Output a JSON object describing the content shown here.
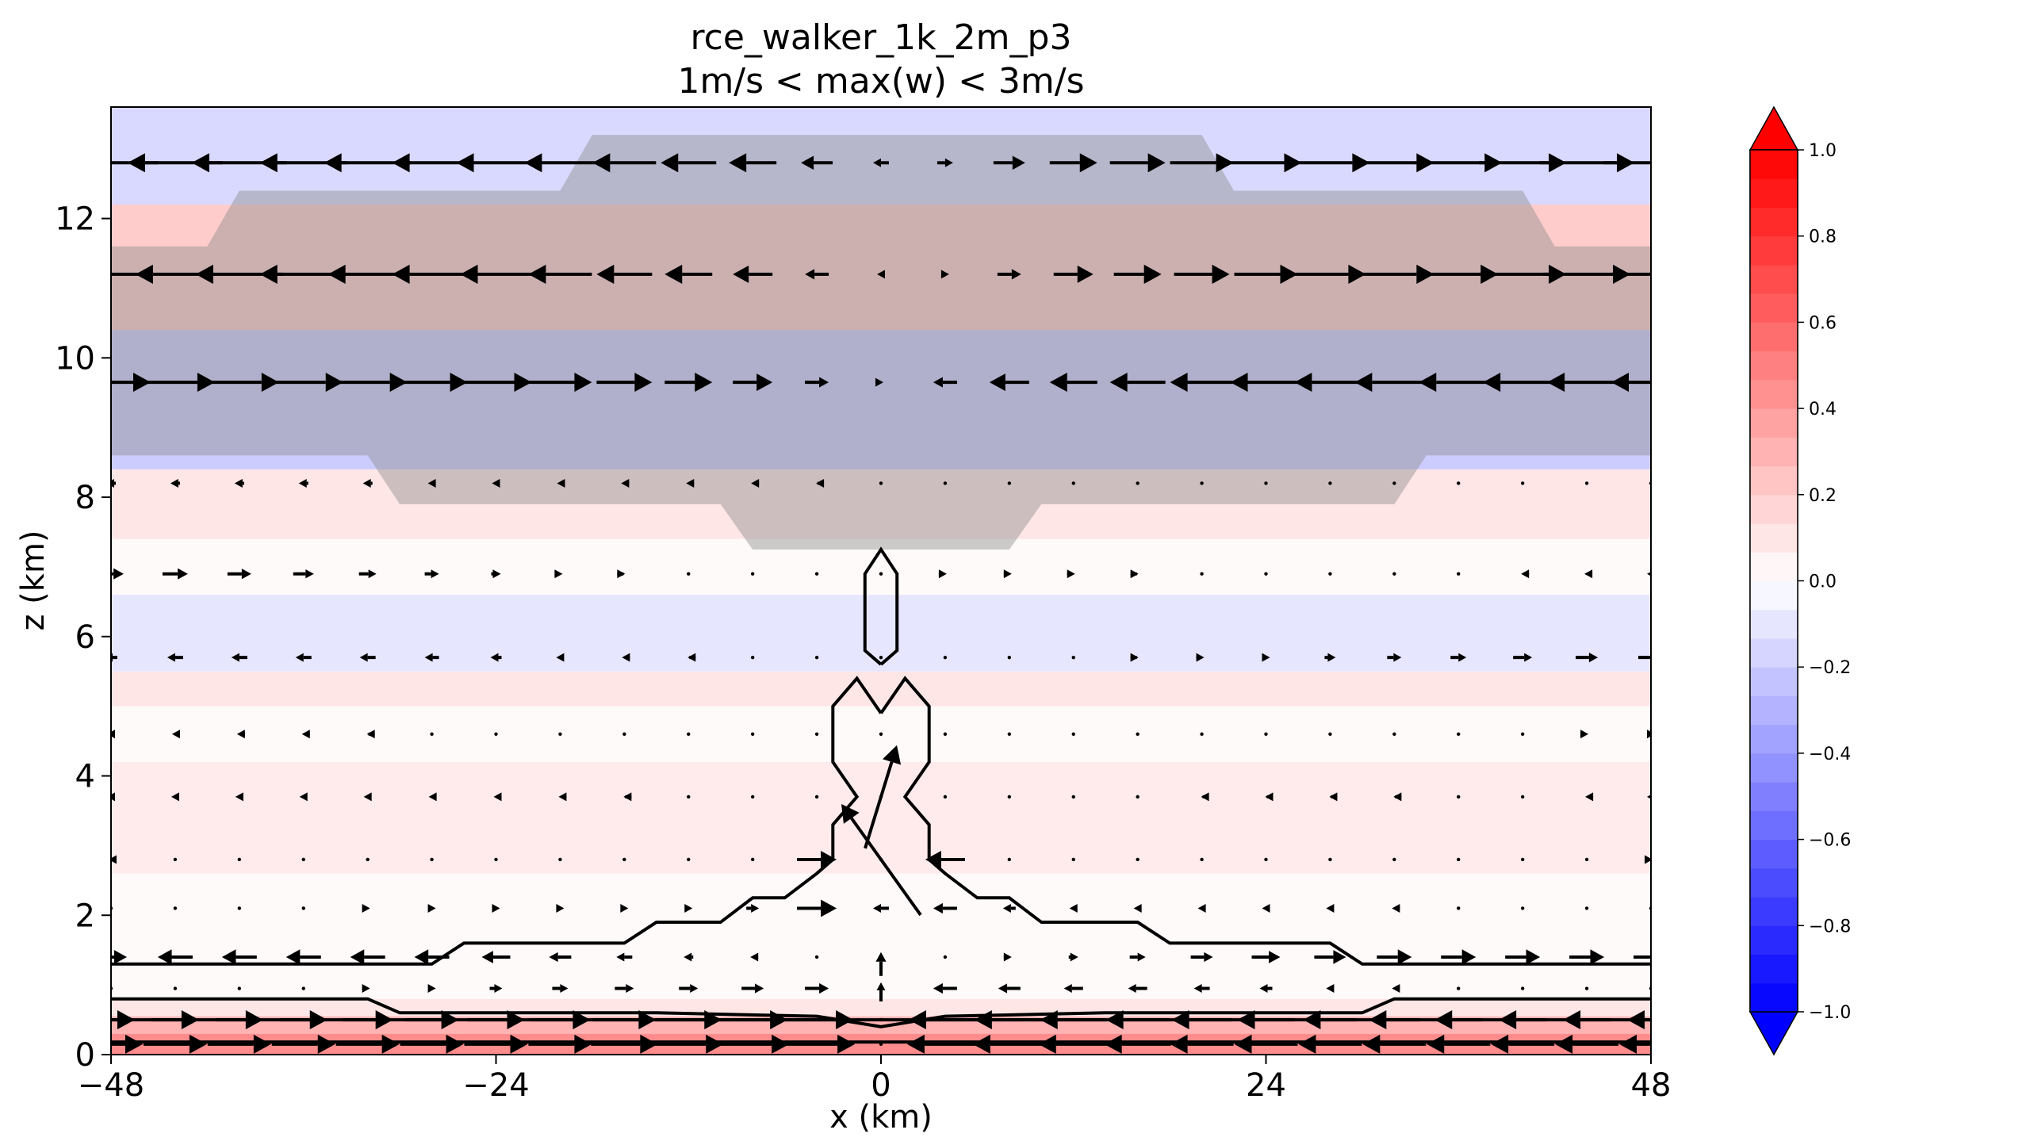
{
  "chart_data": {
    "type": "heatmap",
    "title": "rce_walker_1k_2m_p3",
    "subtitle": "1m/s < max(w) < 3m/s",
    "xlabel": "x (km)",
    "ylabel": "z (km)",
    "xlim": [
      -48,
      48
    ],
    "ylim": [
      0,
      13.6
    ],
    "xticks": [
      -48,
      -24,
      0,
      24,
      48
    ],
    "yticks": [
      0,
      2,
      4,
      6,
      8,
      10,
      12
    ],
    "colorbar": {
      "colormap": "bwr",
      "range": [
        -1.0,
        1.0
      ],
      "ticks": [
        "1.0",
        "0.8",
        "0.6",
        "0.4",
        "0.2",
        "0.0",
        "−0.2",
        "−0.4",
        "−0.6",
        "−0.8",
        "−1.0"
      ],
      "extend": "both",
      "low_color": "#0000ff",
      "mid_color": "#ffffff",
      "high_color": "#ff0000"
    },
    "field_bands": [
      {
        "z": [
          0.0,
          0.3
        ],
        "value": 0.45
      },
      {
        "z": [
          0.3,
          0.55
        ],
        "value": 0.3
      },
      {
        "z": [
          0.55,
          0.8
        ],
        "value": 0.1
      },
      {
        "z": [
          0.8,
          1.4
        ],
        "value": 0.02
      },
      {
        "z": [
          1.4,
          2.6
        ],
        "value": 0.02
      },
      {
        "z": [
          2.6,
          4.2
        ],
        "value": 0.08
      },
      {
        "z": [
          4.2,
          5.0
        ],
        "value": 0.02
      },
      {
        "z": [
          5.0,
          5.5
        ],
        "value": 0.1
      },
      {
        "z": [
          5.5,
          6.6
        ],
        "value": -0.1
      },
      {
        "z": [
          6.6,
          7.4
        ],
        "value": 0.02
      },
      {
        "z": [
          7.4,
          8.4
        ],
        "value": 0.1
      },
      {
        "z": [
          8.4,
          10.4
        ],
        "value": -0.2
      },
      {
        "z": [
          10.4,
          12.2
        ],
        "value": 0.2
      },
      {
        "z": [
          12.2,
          13.6
        ],
        "value": -0.15
      }
    ],
    "grey_region_outline_xz": [
      [
        -48,
        8.6
      ],
      [
        -48,
        11.6
      ],
      [
        -42,
        11.6
      ],
      [
        -40,
        12.4
      ],
      [
        -20,
        12.4
      ],
      [
        -18,
        13.2
      ],
      [
        20,
        13.2
      ],
      [
        22,
        12.4
      ],
      [
        40,
        12.4
      ],
      [
        42,
        11.6
      ],
      [
        48,
        11.6
      ],
      [
        48,
        8.6
      ],
      [
        34,
        8.6
      ],
      [
        32,
        7.9
      ],
      [
        10,
        7.9
      ],
      [
        8,
        7.25
      ],
      [
        -8,
        7.25
      ],
      [
        -10,
        7.9
      ],
      [
        -30,
        7.9
      ],
      [
        -32,
        8.6
      ]
    ],
    "contours_xz": [
      [
        [
          0,
          5.6
        ],
        [
          -1,
          5.8
        ],
        [
          -1,
          6.9
        ],
        [
          0,
          7.25
        ],
        [
          1,
          6.9
        ],
        [
          1,
          5.8
        ],
        [
          0,
          5.6
        ]
      ],
      [
        [
          0,
          4.9
        ],
        [
          -1.5,
          5.4
        ],
        [
          -3,
          5.0
        ],
        [
          -3,
          4.2
        ],
        [
          -1.5,
          3.7
        ],
        [
          -3,
          3.3
        ],
        [
          -3,
          2.8
        ],
        [
          -4,
          2.6
        ],
        [
          -6,
          2.25
        ],
        [
          -8,
          2.25
        ],
        [
          -10,
          1.9
        ],
        [
          -14,
          1.9
        ],
        [
          -16,
          1.6
        ],
        [
          -26,
          1.6
        ],
        [
          -28,
          1.3
        ],
        [
          -48,
          1.3
        ]
      ],
      [
        [
          0,
          4.9
        ],
        [
          1.5,
          5.4
        ],
        [
          3,
          5.0
        ],
        [
          3,
          4.2
        ],
        [
          1.5,
          3.7
        ],
        [
          3,
          3.3
        ],
        [
          3,
          2.8
        ],
        [
          4,
          2.6
        ],
        [
          6,
          2.25
        ],
        [
          8,
          2.25
        ],
        [
          10,
          1.9
        ],
        [
          16,
          1.9
        ],
        [
          18,
          1.6
        ],
        [
          28,
          1.6
        ],
        [
          30,
          1.3
        ],
        [
          48,
          1.3
        ]
      ],
      [
        [
          -48,
          0.8
        ],
        [
          -32,
          0.8
        ],
        [
          -30,
          0.6
        ],
        [
          -14,
          0.6
        ],
        [
          -4,
          0.55
        ],
        [
          0,
          0.4
        ],
        [
          4,
          0.55
        ],
        [
          14,
          0.6
        ],
        [
          30,
          0.6
        ],
        [
          32,
          0.8
        ],
        [
          48,
          0.8
        ]
      ],
      [
        [
          -48,
          0.5
        ],
        [
          48,
          0.5
        ]
      ],
      [
        [
          -48,
          0.18
        ],
        [
          48,
          0.18
        ]
      ]
    ],
    "wind_rows": [
      {
        "z": 12.8,
        "u": [
          -6,
          -6,
          -6,
          -5.5,
          -5.5,
          -5,
          -5,
          -4.5,
          -4,
          -3.5,
          -3,
          -2,
          -1,
          1,
          2,
          3,
          3.5,
          4,
          4.5,
          5,
          5,
          5.5,
          5.5,
          6,
          6
        ],
        "w": [
          0
        ]
      },
      {
        "z": 11.2,
        "u": [
          -5,
          -5,
          -5.5,
          -5.5,
          -5,
          -5,
          -4.5,
          -4,
          -3.5,
          -3,
          -2.5,
          -1.5,
          -0.5,
          0.5,
          1.5,
          2.5,
          3,
          3.5,
          4,
          4.5,
          5,
          5,
          5.5,
          5.5,
          5
        ],
        "w": [
          0
        ]
      },
      {
        "z": 9.65,
        "u": [
          5,
          5,
          5,
          5,
          5,
          4.5,
          4.5,
          4,
          3.5,
          3,
          2.5,
          1.5,
          0.3,
          -1.5,
          -2.5,
          -3,
          -3.5,
          -4,
          -4.5,
          -4.5,
          -5,
          -5,
          -5,
          -5,
          -5
        ],
        "w": [
          0
        ]
      },
      {
        "z": 8.2,
        "u": [
          -0.6,
          -0.6,
          -0.6,
          -0.6,
          -0.6,
          -0.5,
          -0.5,
          -0.4,
          -0.4,
          -0.3,
          -0.2,
          -0.1,
          0,
          0,
          0,
          0,
          0,
          0,
          0,
          0,
          0,
          0,
          0,
          0,
          0
        ],
        "w": [
          0
        ]
      },
      {
        "z": 6.9,
        "u": [
          1.6,
          1.6,
          1.5,
          1.3,
          1.1,
          0.9,
          0.6,
          0.3,
          0.1,
          0,
          0,
          0,
          0,
          0.2,
          0.3,
          0.2,
          0.1,
          0,
          0,
          0,
          0,
          0,
          -0.2,
          -0.3,
          -0.5
        ],
        "w": [
          0
        ]
      },
      {
        "z": 5.7,
        "u": [
          -0.8,
          -1,
          -1,
          -1,
          -1,
          -0.9,
          -0.7,
          -0.5,
          -0.3,
          -0.1,
          0,
          0,
          0,
          0,
          0,
          0,
          0.1,
          0.3,
          0.5,
          0.7,
          0.9,
          1,
          1.2,
          1.4,
          1.6
        ],
        "w": [
          0
        ]
      },
      {
        "z": 4.6,
        "u": [
          -0.5,
          -0.4,
          -0.3,
          -0.2,
          -0.1,
          0,
          0,
          0,
          0,
          0,
          0,
          0,
          0,
          0,
          0,
          0,
          0,
          0,
          0,
          0,
          0,
          0,
          0,
          0.2,
          0.5
        ],
        "w": [
          0
        ]
      },
      {
        "z": 3.7,
        "u": [
          -0.5,
          -0.5,
          -0.5,
          -0.5,
          -0.5,
          -0.4,
          -0.3,
          -0.2,
          -0.1,
          0,
          0,
          0,
          0,
          0,
          0,
          0,
          0,
          -0.1,
          -0.1,
          -0.1,
          -0.1,
          0,
          0,
          -0.2,
          -0.5
        ],
        "w": [
          0
        ]
      },
      {
        "z": 2.8,
        "u": [
          -0.3,
          0,
          0,
          0,
          0,
          0,
          0,
          0,
          0,
          0,
          0,
          2.5,
          0,
          -2.5,
          0,
          0,
          0,
          0,
          0,
          0,
          0,
          0,
          0,
          0,
          0.2
        ],
        "w": [
          0
        ]
      },
      {
        "z": 2.1,
        "u": [
          0,
          0,
          0,
          0,
          0.3,
          0.5,
          0.5,
          0.5,
          0.5,
          0.5,
          0.8,
          2.5,
          -1,
          -1.5,
          -0.8,
          -0.5,
          -0.5,
          -0.5,
          -0.5,
          -0.5,
          -0.3,
          0,
          0,
          0,
          0
        ],
        "w": [
          0
        ]
      },
      {
        "z": 1.4,
        "u": [
          2,
          -2.2,
          -2.2,
          -2.2,
          -2.2,
          -2.2,
          -1.8,
          -1.4,
          -1,
          -0.6,
          -0.3,
          0,
          0,
          0,
          0.3,
          0.6,
          1,
          1.4,
          1.8,
          2,
          2.2,
          2.2,
          2.2,
          2.2,
          2.2
        ],
        "w": [
          0
        ]
      },
      {
        "z": 0.95,
        "u": [
          0,
          0,
          0,
          0,
          0.3,
          0.5,
          0.8,
          1,
          1.2,
          1.2,
          1.4,
          1.5,
          0,
          -1.5,
          -1.4,
          -1.2,
          -1.2,
          -1,
          -0.8,
          -0.5,
          -0.3,
          0,
          0,
          0,
          0
        ],
        "w": [
          0
        ]
      },
      {
        "z": 0.5,
        "u": [
          3,
          3,
          3,
          3,
          3.2,
          3.4,
          3.6,
          3.8,
          4,
          4.2,
          4.4,
          4.6,
          0,
          -4.6,
          -4.4,
          -4.2,
          -4,
          -3.8,
          -3.6,
          -3.4,
          -3.2,
          -3,
          -3,
          -3,
          -3
        ],
        "w": [
          0
        ]
      },
      {
        "z": 0.15,
        "u": [
          4,
          4,
          4,
          4,
          4,
          4,
          4,
          4,
          4.2,
          4.4,
          4.6,
          4.8,
          0,
          -4.8,
          -4.6,
          -4.4,
          -4.2,
          -4,
          -4,
          -4,
          -4,
          -4,
          -4,
          -4,
          -4
        ],
        "w": [
          0
        ]
      }
    ],
    "updraft_arrows": [
      {
        "x": 0,
        "z": 2.8,
        "u": -5,
        "w": 7
      },
      {
        "x": 0,
        "z": 3.7,
        "u": 2,
        "w": 6.5
      },
      {
        "x": 0,
        "z": 1.3,
        "u": 0,
        "w": 1.5
      },
      {
        "x": 0,
        "z": 0.9,
        "u": 0,
        "w": 1.2
      }
    ]
  }
}
